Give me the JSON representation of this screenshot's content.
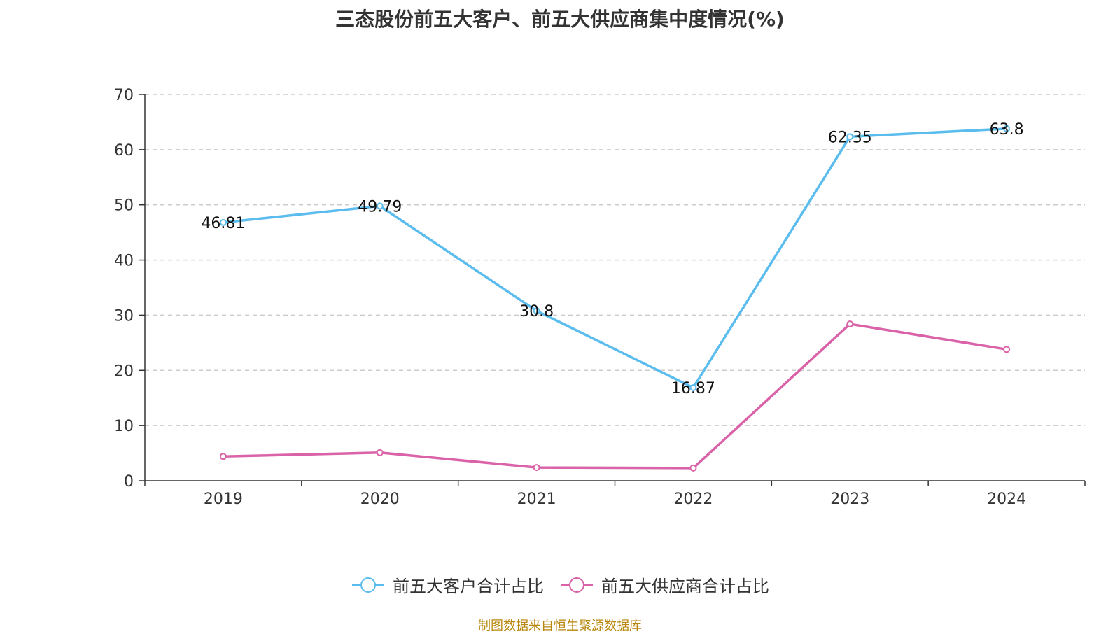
{
  "title": "三态股份前五大客户、前五大供应商集中度情况(%)",
  "source": "制图数据来自恒生聚源数据库",
  "chart_data": {
    "type": "line",
    "title": "三态股份前五大客户、前五大供应商集中度情况(%)",
    "categories": [
      "2019",
      "2020",
      "2021",
      "2022",
      "2023",
      "2024"
    ],
    "ylim": [
      0,
      70
    ],
    "yticks": [
      0,
      10,
      20,
      30,
      40,
      50,
      60,
      70
    ],
    "grid": true,
    "legend_position": "bottom",
    "series": [
      {
        "name": "前五大客户合计占比",
        "color": "#5bbcee",
        "values": [
          46.81,
          49.79,
          30.8,
          16.87,
          62.35,
          63.8
        ],
        "labels": [
          "46.81",
          "49.79",
          "30.8",
          "16.87",
          "62.35",
          "63.8"
        ]
      },
      {
        "name": "前五大供应商合计占比",
        "color": "#d962a8",
        "values": [
          4.4,
          5.1,
          2.4,
          2.3,
          28.4,
          23.8
        ],
        "labels": null
      }
    ]
  }
}
